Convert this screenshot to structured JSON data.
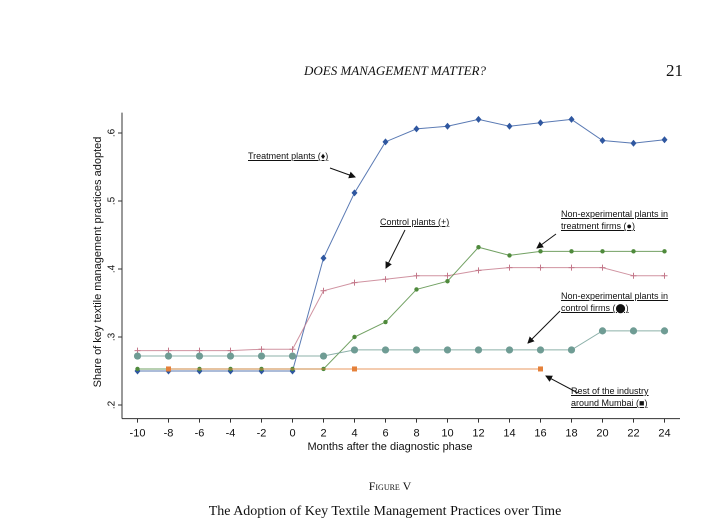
{
  "page": {
    "running_head": "DOES MANAGEMENT MATTER?",
    "page_number": "21",
    "figure_label": "Figure V",
    "caption": "The Adoption of Key Textile Management Practices over Time"
  },
  "chart_data": {
    "type": "line",
    "x_label": "Months after the diagnostic phase",
    "y_label": "Share of key textile management practices adopted",
    "x": [
      -10,
      -8,
      -6,
      -4,
      -2,
      0,
      2,
      4,
      6,
      8,
      10,
      12,
      14,
      16,
      18,
      20,
      22,
      24
    ],
    "xlim": [
      -11,
      25
    ],
    "xticks": [
      -10,
      -8,
      -6,
      -4,
      -2,
      0,
      2,
      4,
      6,
      8,
      10,
      12,
      14,
      16,
      18,
      20,
      22,
      24
    ],
    "ylim": [
      0.18,
      0.63
    ],
    "yticks": [
      {
        "value": 0.2,
        "label": ".2"
      },
      {
        "value": 0.3,
        "label": ".3"
      },
      {
        "value": 0.4,
        "label": ".4"
      },
      {
        "value": 0.5,
        "label": ".5"
      },
      {
        "value": 0.6,
        "label": ".6"
      }
    ],
    "series": [
      {
        "name": "Treatment plants (♦)",
        "color": "#2f57a0",
        "marker": "diamond",
        "values": [
          0.25,
          0.25,
          0.25,
          0.25,
          0.25,
          0.25,
          0.416,
          0.512,
          0.587,
          0.606,
          0.61,
          0.62,
          0.61,
          0.615,
          0.62,
          0.589,
          0.585,
          0.59
        ]
      },
      {
        "name": "Control plants (+)",
        "color": "#c4788a",
        "marker": "plus",
        "values": [
          0.28,
          0.28,
          0.28,
          0.28,
          0.282,
          0.282,
          0.368,
          0.38,
          0.385,
          0.39,
          0.39,
          0.398,
          0.402,
          0.402,
          0.402,
          0.402,
          0.39,
          0.39
        ]
      },
      {
        "name": "Non-experimental plants in treatment firms (●)",
        "color": "#4f8a3c",
        "marker": "dot",
        "values": [
          0.253,
          0.253,
          0.253,
          0.253,
          0.253,
          0.253,
          0.253,
          0.3,
          0.322,
          0.37,
          0.382,
          0.432,
          0.42,
          0.426,
          0.426,
          0.426,
          0.426,
          0.426
        ]
      },
      {
        "name": "Non-experimental plants in control firms (⬤)",
        "color": "#6f9c94",
        "marker": "circle",
        "values": [
          0.272,
          0.272,
          0.272,
          0.272,
          0.272,
          0.272,
          0.272,
          0.281,
          0.281,
          0.281,
          0.281,
          0.281,
          0.281,
          0.281,
          0.281,
          0.309,
          0.309,
          0.309
        ]
      },
      {
        "name": "Rest of the industry around Mumbai (■)",
        "color": "#e5813a",
        "marker": "square",
        "x": [
          -8,
          4,
          16
        ],
        "values": [
          0.253,
          0.253,
          0.253
        ]
      }
    ]
  }
}
